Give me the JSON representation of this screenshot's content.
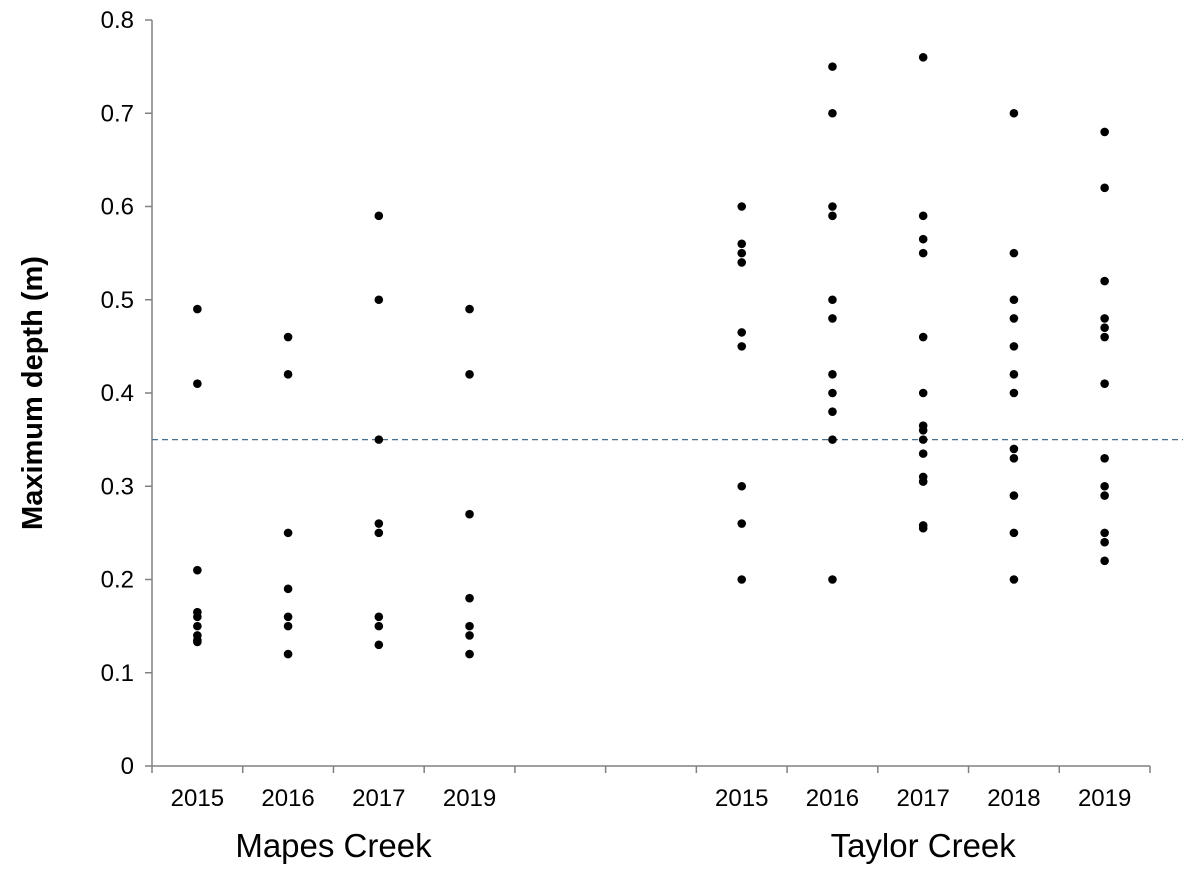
{
  "chart_data": {
    "type": "scatter",
    "title": "",
    "xlabel": "",
    "ylabel": "Maximum depth (m)",
    "ylim": [
      0,
      0.8
    ],
    "yticks": [
      "0",
      "0.1",
      "0.2",
      "0.3",
      "0.4",
      "0.5",
      "0.6",
      "0.7",
      "0.8"
    ],
    "grid": false,
    "legend": "none",
    "reference_line": {
      "y": 0.35,
      "style": "dashed",
      "color": "#4a7191"
    },
    "point_color": "#000000",
    "groups": [
      {
        "name": "Mapes Creek",
        "categories": [
          {
            "label": "2015",
            "values": [
              0.49,
              0.41,
              0.21,
              0.165,
              0.16,
              0.15,
              0.14,
              0.135,
              0.133
            ]
          },
          {
            "label": "2016",
            "values": [
              0.46,
              0.42,
              0.25,
              0.19,
              0.16,
              0.15,
              0.12
            ]
          },
          {
            "label": "2017",
            "values": [
              0.59,
              0.5,
              0.35,
              0.26,
              0.25,
              0.16,
              0.15,
              0.13
            ]
          },
          {
            "label": "2019",
            "values": [
              0.49,
              0.42,
              0.27,
              0.18,
              0.15,
              0.14,
              0.12
            ]
          }
        ]
      },
      {
        "name": "Taylor Creek",
        "categories": [
          {
            "label": "2015",
            "values": [
              0.6,
              0.56,
              0.55,
              0.54,
              0.465,
              0.45,
              0.3,
              0.26,
              0.2
            ]
          },
          {
            "label": "2016",
            "values": [
              0.75,
              0.7,
              0.6,
              0.59,
              0.5,
              0.48,
              0.42,
              0.4,
              0.38,
              0.35,
              0.2
            ]
          },
          {
            "label": "2017",
            "values": [
              0.76,
              0.59,
              0.565,
              0.55,
              0.46,
              0.4,
              0.365,
              0.36,
              0.35,
              0.335,
              0.31,
              0.305,
              0.258,
              0.255
            ]
          },
          {
            "label": "2018",
            "values": [
              0.7,
              0.55,
              0.5,
              0.48,
              0.45,
              0.42,
              0.4,
              0.34,
              0.33,
              0.29,
              0.25,
              0.2
            ]
          },
          {
            "label": "2019",
            "values": [
              0.68,
              0.62,
              0.52,
              0.48,
              0.47,
              0.46,
              0.41,
              0.33,
              0.3,
              0.29,
              0.25,
              0.24,
              0.22
            ]
          }
        ]
      }
    ]
  }
}
